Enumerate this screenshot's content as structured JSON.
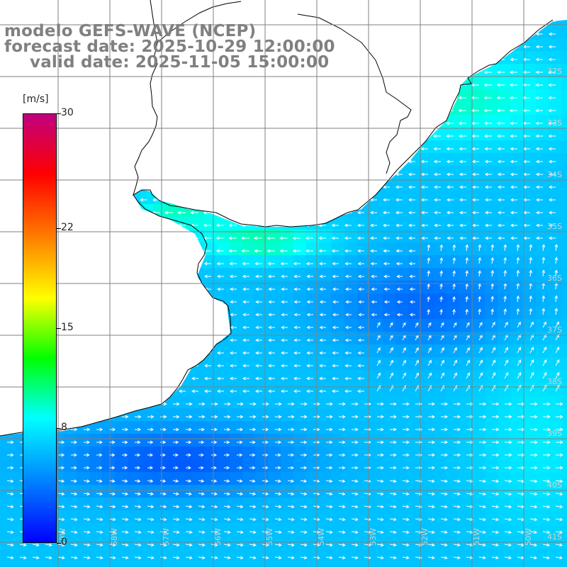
{
  "title": {
    "line1": "modelo GEFS-WAVE (NCEP)",
    "line2": "forecast date: 2025-10-29 12:00:00",
    "line3": "valid date: 2025-11-05 15:00:00"
  },
  "colorbar": {
    "unit": "[m/s]",
    "ticks": [
      "30",
      "22",
      "15",
      "8",
      "0"
    ],
    "tick_values": [
      30,
      22,
      15,
      8,
      0
    ],
    "min": 0,
    "max": 30,
    "colors": [
      "#0000ff",
      "#0080ff",
      "#00ffff",
      "#00ff00",
      "#ffff00",
      "#ff8000",
      "#ff0000",
      "#c0007f"
    ]
  },
  "lat_labels": [
    "32S",
    "33S",
    "34S",
    "35S",
    "36S",
    "37S",
    "38S",
    "39S",
    "40S",
    "41S"
  ],
  "lon_labels": [
    "59W",
    "58W",
    "57W",
    "56W",
    "55W",
    "54W",
    "53W",
    "52W",
    "51W",
    "50W"
  ],
  "colors": {
    "land": "#ffffff",
    "coast": "#000000",
    "grid": "#808080",
    "title": "#808080",
    "arrow": "#ffffff"
  }
}
